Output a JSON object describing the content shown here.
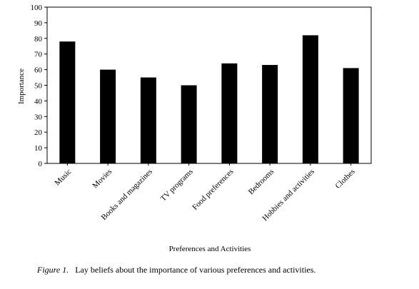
{
  "chart_data": {
    "type": "bar",
    "categories": [
      "Music",
      "Movies",
      "Books and magazines",
      "TV programs",
      "Food preferences",
      "Bedrooms",
      "Hobbies and activities",
      "Clothes"
    ],
    "values": [
      78,
      60,
      55,
      50,
      64,
      63,
      82,
      61
    ],
    "ylabel": "Importance",
    "xlabel": "Preferences and Activities",
    "ylim": [
      0,
      100
    ],
    "yticks": [
      0,
      10,
      20,
      30,
      40,
      50,
      60,
      70,
      80,
      90,
      100
    ],
    "grid": false,
    "bar_color": "#000000"
  },
  "caption": {
    "figure_label": "Figure 1.",
    "text": "Lay beliefs about the importance of various preferences and activities."
  }
}
